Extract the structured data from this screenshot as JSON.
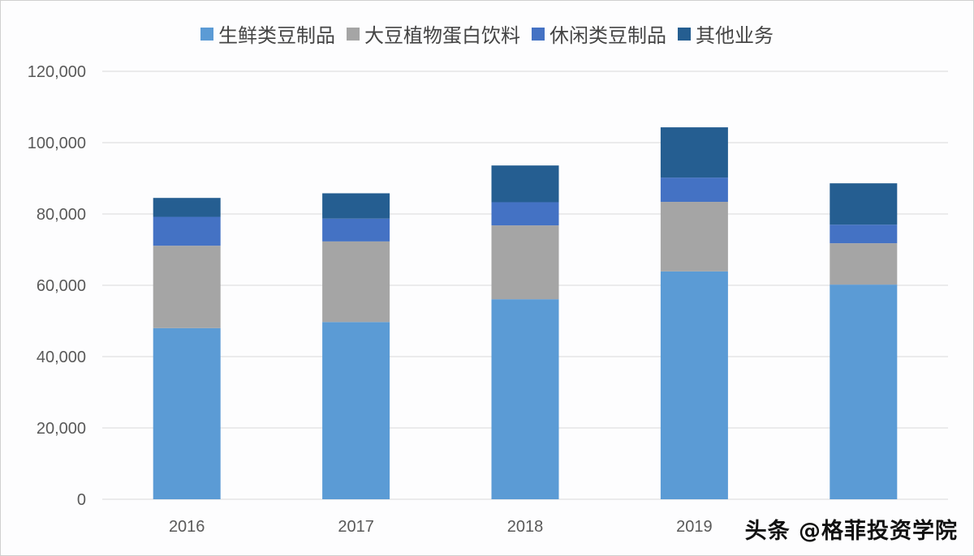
{
  "chart_data": {
    "type": "bar",
    "stacked": true,
    "categories": [
      "2016",
      "2017",
      "2018",
      "2019",
      ""
    ],
    "series": [
      {
        "name": "生鲜类豆制品",
        "color": "#5b9bd5",
        "values": [
          48000,
          49700,
          56100,
          63900,
          60200
        ]
      },
      {
        "name": "大豆植物蛋白饮料",
        "color": "#a5a5a5",
        "values": [
          23100,
          22600,
          20700,
          19500,
          11600
        ]
      },
      {
        "name": "休闲类豆制品",
        "color": "#4472c4",
        "values": [
          8100,
          6400,
          6500,
          6800,
          5200
        ]
      },
      {
        "name": "其他业务",
        "color": "#255e91",
        "values": [
          5300,
          7100,
          10300,
          14100,
          11600
        ]
      }
    ],
    "ylim": [
      0,
      120000
    ],
    "yticks": [
      "0",
      "20,000",
      "40,000",
      "60,000",
      "80,000",
      "100,000",
      "120,000"
    ],
    "grid": true,
    "legend": "top",
    "title": "",
    "xlabel": "",
    "ylabel": ""
  },
  "watermark": "头条 @格菲投资学院"
}
